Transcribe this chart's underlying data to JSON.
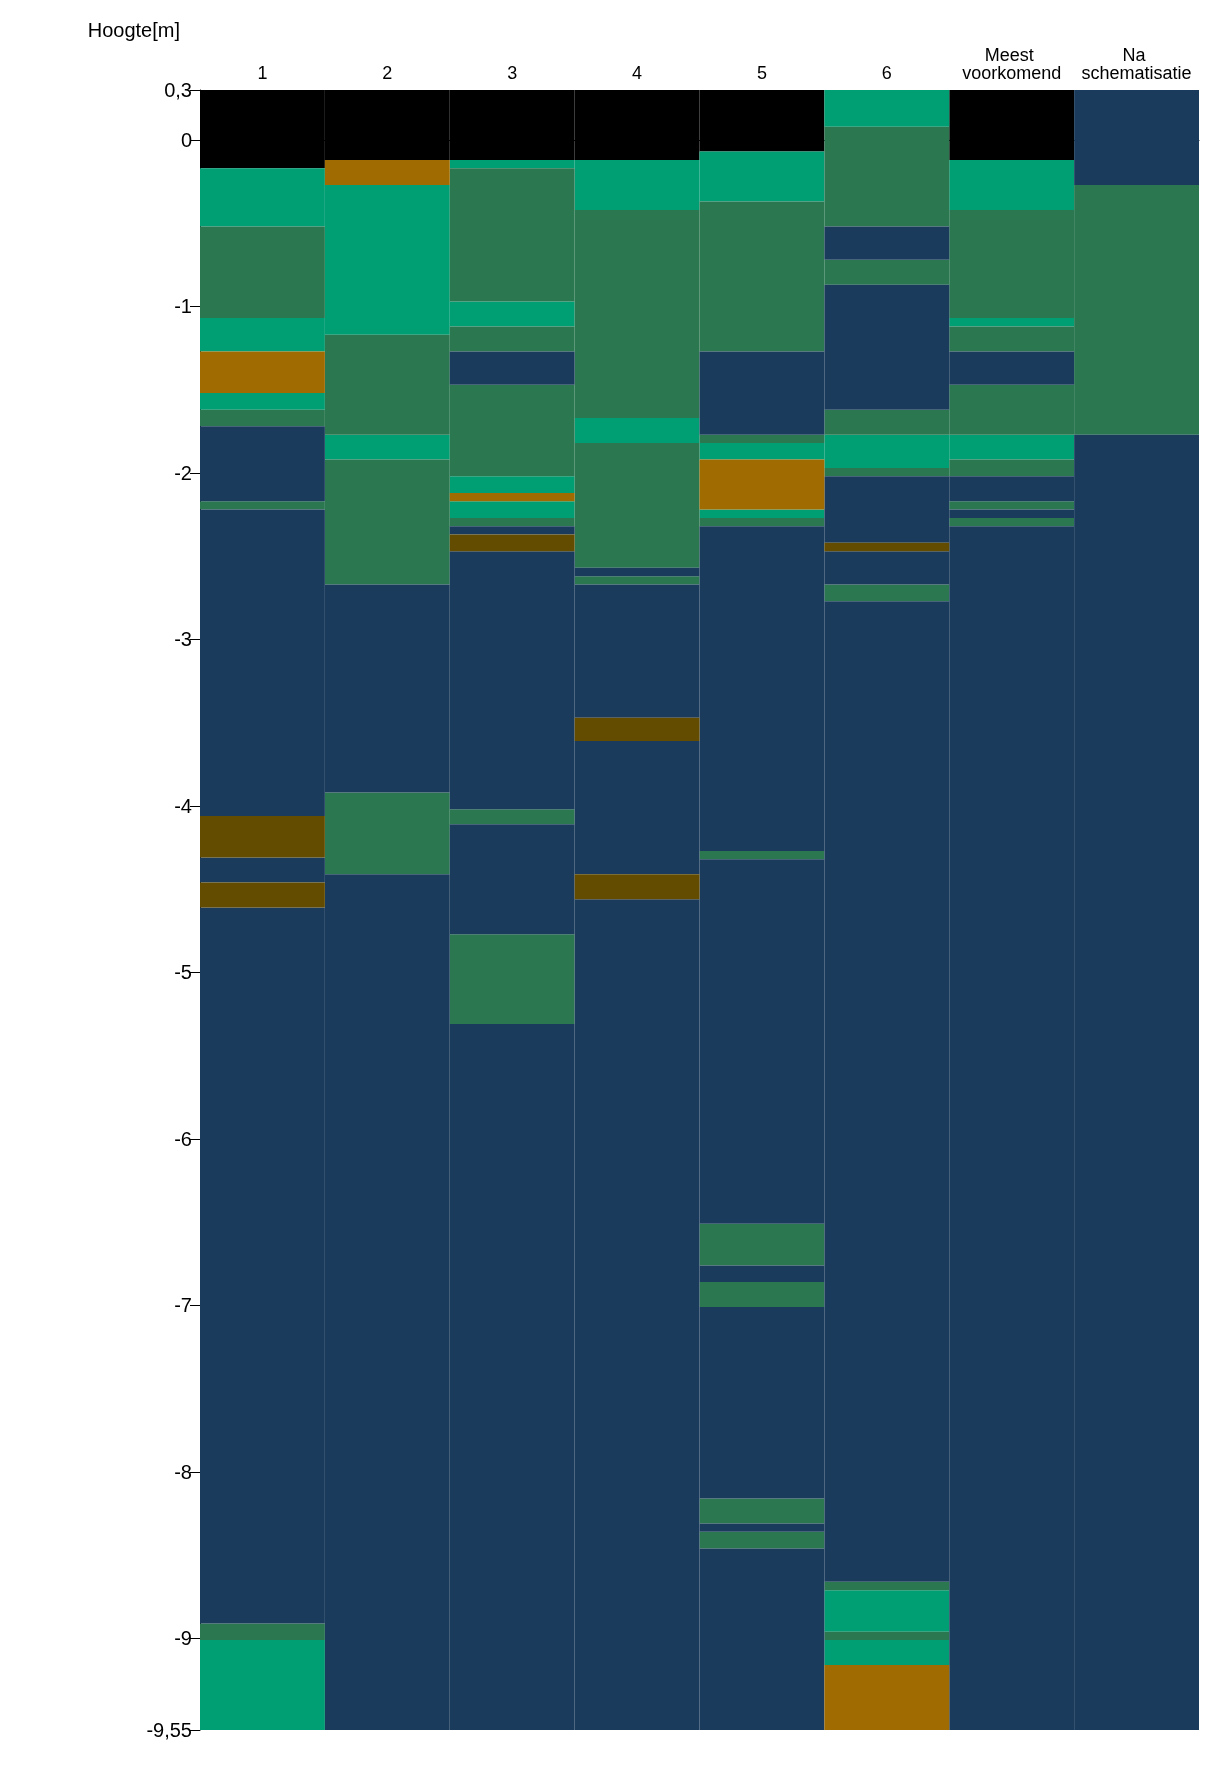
{
  "chart_data": {
    "type": "bar",
    "ylabel": "Hoogte[m]",
    "categories": [
      "1",
      "2",
      "3",
      "4",
      "5",
      "6",
      "Meest voorkomend",
      "Na schematisatie"
    ],
    "ylim": [
      -9.55,
      0.3
    ],
    "yticks": [
      {
        "value": 0.3,
        "label": "0,3"
      },
      0,
      -1,
      -2,
      -3,
      -4,
      -5,
      -6,
      -7,
      -8,
      -9,
      {
        "value": -9.55,
        "label": "-9,55"
      }
    ],
    "series": [
      {
        "color": "#000000",
        "x": [
          "1",
          "2",
          "3",
          "4",
          "5",
          "Meest voorkomend"
        ],
        "base": [
          -0.17,
          -0.12,
          -0.12,
          -0.12,
          -0.07,
          -0.12
        ],
        "values": [
          0.47,
          0.42,
          0.42,
          0.42,
          0.37,
          0.42
        ]
      },
      {
        "color": "#009e73",
        "x": [
          "1",
          "1",
          "1",
          "1",
          "2",
          "2",
          "3",
          "3",
          "3",
          "3",
          "4",
          "4",
          "5",
          "5",
          "5",
          "6",
          "6",
          "6",
          "6",
          "Meest voorkomend",
          "Meest voorkomend",
          "Meest voorkomend"
        ],
        "base": [
          -0.52,
          -1.27,
          -1.62,
          -9.55,
          -1.17,
          -1.92,
          -0.17,
          -1.12,
          -2.12,
          -2.27,
          -0.42,
          -1.82,
          -0.37,
          -1.92,
          -2.27,
          0.08,
          -1.97,
          -8.96,
          -9.16,
          -0.42,
          -1.12,
          -1.92
        ],
        "values": [
          0.35,
          0.2,
          0.1,
          0.54,
          0.9,
          0.15,
          0.05,
          0.15,
          0.1,
          0.1,
          0.3,
          0.15,
          0.3,
          0.1,
          0.05,
          0.22,
          0.2,
          0.25,
          0.15,
          0.3,
          0.05,
          0.15
        ]
      },
      {
        "color": "#2a7750",
        "x": [
          "1",
          "1",
          "1",
          "1",
          "2",
          "2",
          "2",
          "3",
          "3",
          "3",
          "3",
          "3",
          "3",
          "4",
          "4",
          "4",
          "5",
          "5",
          "5",
          "5",
          "5",
          "5",
          "5",
          "5",
          "6",
          "6",
          "6",
          "6",
          "6",
          "6",
          "6",
          "Meest voorkomend",
          "Meest voorkomend",
          "Meest voorkomend",
          "Meest voorkomend",
          "Meest voorkomend",
          "Meest voorkomend",
          "Na schematisatie"
        ],
        "base": [
          -1.07,
          -1.72,
          -2.22,
          -9.01,
          -1.77,
          -2.67,
          -4.41,
          -0.97,
          -1.27,
          -2.02,
          -2.32,
          -4.11,
          -5.31,
          -1.67,
          -2.57,
          -2.67,
          -1.27,
          -1.82,
          -2.32,
          -4.32,
          -6.76,
          -7.01,
          -8.31,
          -8.46,
          -0.52,
          -0.87,
          -1.77,
          -2.02,
          -2.77,
          -8.71,
          -9.01,
          -1.07,
          -1.27,
          -1.77,
          -2.02,
          -2.22,
          -2.32,
          -1.77
        ],
        "values": [
          0.55,
          0.1,
          0.05,
          0.1,
          0.6,
          0.75,
          0.49,
          0.8,
          0.15,
          0.55,
          0.05,
          0.09,
          0.54,
          1.25,
          0.75,
          0.05,
          0.9,
          0.05,
          0.05,
          0.05,
          0.25,
          0.15,
          0.15,
          0.1,
          0.6,
          0.15,
          0.15,
          0.05,
          0.1,
          0.05,
          0.05,
          0.65,
          0.15,
          0.3,
          0.1,
          0.05,
          0.05,
          1.5
        ]
      },
      {
        "color": "#1a3b5c",
        "x": [
          "1",
          "1",
          "1",
          "1",
          "2",
          "2",
          "3",
          "3",
          "3",
          "3",
          "3",
          "4",
          "4",
          "4",
          "4",
          "5",
          "5",
          "5",
          "5",
          "5",
          "5",
          "5",
          "6",
          "6",
          "6",
          "6",
          "6",
          "Meest voorkomend",
          "Meest voorkomend",
          "Meest voorkomend",
          "Meest voorkomend",
          "Na schematisatie",
          "Na schematisatie"
        ],
        "base": [
          -2.17,
          -4.06,
          -4.46,
          -8.91,
          -3.92,
          -9.55,
          -1.47,
          -2.37,
          -4.02,
          -4.77,
          -9.55,
          -2.62,
          -3.47,
          -4.41,
          -9.55,
          -1.77,
          -4.27,
          -6.51,
          -6.86,
          -8.16,
          -8.36,
          -9.55,
          -0.72,
          -1.62,
          -2.42,
          -2.67,
          -8.66,
          -1.47,
          -2.17,
          -2.27,
          -9.55,
          -0.27,
          -9.55
        ],
        "values": [
          0.45,
          1.84,
          0.15,
          4.3,
          1.25,
          5.14,
          0.2,
          0.05,
          1.55,
          0.66,
          4.24,
          0.05,
          0.8,
          0.8,
          4.99,
          0.5,
          1.95,
          2.19,
          0.1,
          1.15,
          0.05,
          1.09,
          0.2,
          0.75,
          0.4,
          0.2,
          5.89,
          0.2,
          0.15,
          0.05,
          7.23,
          0.57,
          7.78
        ]
      },
      {
        "color": "#a06b00",
        "x": [
          "1",
          "2",
          "3",
          "5",
          "6"
        ],
        "base": [
          -1.52,
          -0.27,
          -2.17,
          -2.22,
          -9.55
        ],
        "values": [
          0.25,
          0.15,
          0.05,
          0.3,
          0.39
        ]
      },
      {
        "color": "#634c00",
        "x": [
          "1",
          "1",
          "3",
          "4",
          "4",
          "6"
        ],
        "base": [
          -4.31,
          -4.61,
          -2.47,
          -3.61,
          -4.56,
          -2.47
        ],
        "values": [
          0.25,
          0.15,
          0.1,
          0.14,
          0.15,
          0.05
        ]
      }
    ]
  }
}
